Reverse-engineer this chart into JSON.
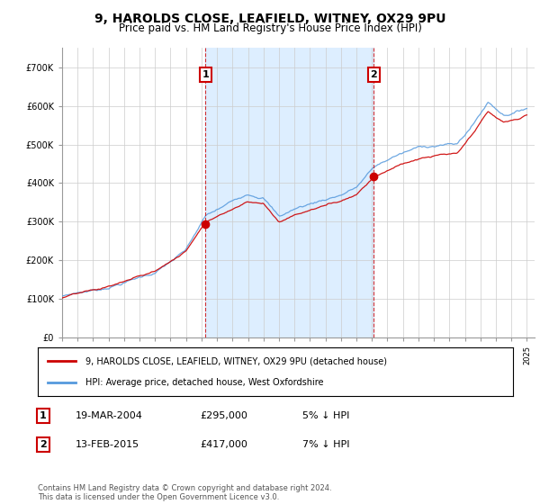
{
  "title": "9, HAROLDS CLOSE, LEAFIELD, WITNEY, OX29 9PU",
  "subtitle": "Price paid vs. HM Land Registry's House Price Index (HPI)",
  "ylim": [
    0,
    750000
  ],
  "yticks": [
    0,
    100000,
    200000,
    300000,
    400000,
    500000,
    600000,
    700000
  ],
  "ytick_labels": [
    "£0",
    "£100K",
    "£200K",
    "£300K",
    "£400K",
    "£500K",
    "£600K",
    "£700K"
  ],
  "sale1_date_num": 2004.25,
  "sale1_price": 295000,
  "sale2_date_num": 2015.12,
  "sale2_price": 417000,
  "legend_line1": "9, HAROLDS CLOSE, LEAFIELD, WITNEY, OX29 9PU (detached house)",
  "legend_line2": "HPI: Average price, detached house, West Oxfordshire",
  "footer": "Contains HM Land Registry data © Crown copyright and database right 2024.\nThis data is licensed under the Open Government Licence v3.0.",
  "hpi_color": "#5599dd",
  "price_color": "#cc0000",
  "shade_color": "#ddeeff",
  "grid_color": "#cccccc",
  "title_fontsize": 10,
  "subtitle_fontsize": 8.5,
  "tick_fontsize": 7,
  "legend_fontsize": 7.5
}
